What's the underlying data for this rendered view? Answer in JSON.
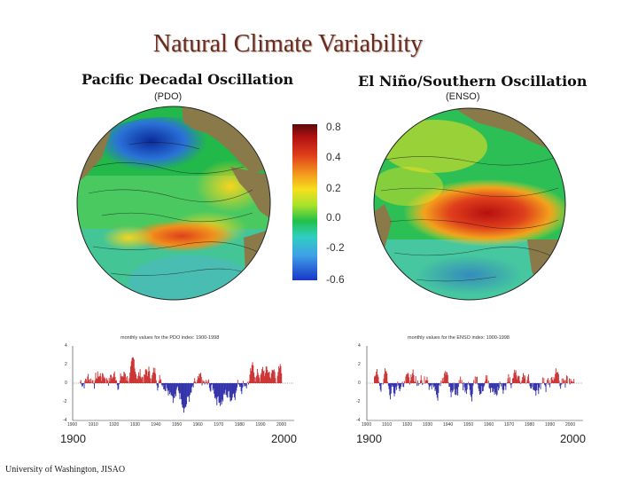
{
  "slide": {
    "title": "Natural Climate Variability",
    "credit": "University of Washington, JISAO"
  },
  "pdo": {
    "title": "Pacific Decadal Oscillation",
    "subtitle": "(PDO)",
    "ts_caption": "monthly values for the PDO index: 1900-1998",
    "year_start": "1900",
    "year_end": "2000"
  },
  "enso": {
    "title": "El Niño/Southern Oscillation",
    "subtitle": "(ENSO)",
    "ts_caption": "monthly values for the ENSO index: 1900-1998",
    "year_start": "1900",
    "year_end": "2000"
  },
  "colorbar": {
    "labels": [
      "0.8",
      "0.4",
      "0.2",
      "0.0",
      "-0.2",
      "-0.6"
    ]
  },
  "axes": {
    "y_ticks": [
      "4",
      "2",
      "0",
      "-2",
      "-4"
    ],
    "x_ticks": [
      "1900",
      "1910",
      "1920",
      "1930",
      "1940",
      "1950",
      "1960",
      "1970",
      "1980",
      "1990",
      "2000"
    ]
  },
  "colors": {
    "title": "#6b2a1e",
    "positive": "#cc3333",
    "negative": "#3333aa",
    "land": "#8a7a4a",
    "ocean_warm": "#d7301f",
    "ocean_cool": "#2b6cd1"
  }
}
